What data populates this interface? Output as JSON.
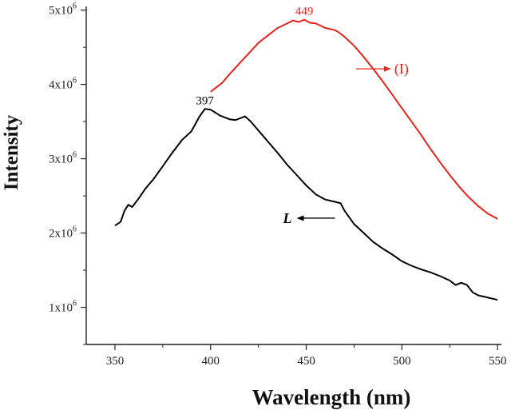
{
  "chart_data": {
    "type": "line",
    "xlabel": "Wavelength (nm)",
    "ylabel": "Intensity",
    "xlim": [
      335,
      552
    ],
    "ylim": [
      500000,
      5050000
    ],
    "x_ticks": [
      350,
      400,
      450,
      500,
      550
    ],
    "x_tick_labels": [
      "350",
      "400",
      "450",
      "500",
      "550"
    ],
    "y_ticks": [
      1000000,
      2000000,
      3000000,
      4000000,
      5000000
    ],
    "y_tick_labels": [
      {
        "base": "1x10",
        "exp": "6"
      },
      {
        "base": "2x10",
        "exp": "6"
      },
      {
        "base": "3x10",
        "exp": "6"
      },
      {
        "base": "4x10",
        "exp": "6"
      },
      {
        "base": "5x10",
        "exp": "6"
      }
    ],
    "grid": false,
    "colors": {
      "axis": "#222222",
      "series_L": "#000000",
      "series_I": "#e8231c"
    },
    "series": [
      {
        "name": "L",
        "color": "#000000",
        "peak_label": "397",
        "peak": [
          397,
          3670000
        ],
        "points": [
          [
            350,
            2100000
          ],
          [
            353,
            2150000
          ],
          [
            355,
            2300000
          ],
          [
            357,
            2380000
          ],
          [
            359,
            2350000
          ],
          [
            362,
            2450000
          ],
          [
            366,
            2600000
          ],
          [
            370,
            2720000
          ],
          [
            375,
            2900000
          ],
          [
            380,
            3080000
          ],
          [
            385,
            3250000
          ],
          [
            390,
            3370000
          ],
          [
            394,
            3560000
          ],
          [
            397,
            3670000
          ],
          [
            400,
            3660000
          ],
          [
            405,
            3580000
          ],
          [
            410,
            3530000
          ],
          [
            413,
            3520000
          ],
          [
            416,
            3550000
          ],
          [
            418,
            3570000
          ],
          [
            421,
            3500000
          ],
          [
            425,
            3380000
          ],
          [
            430,
            3230000
          ],
          [
            435,
            3080000
          ],
          [
            440,
            2920000
          ],
          [
            445,
            2780000
          ],
          [
            450,
            2640000
          ],
          [
            455,
            2520000
          ],
          [
            460,
            2450000
          ],
          [
            465,
            2420000
          ],
          [
            468,
            2400000
          ],
          [
            470,
            2300000
          ],
          [
            475,
            2120000
          ],
          [
            480,
            2000000
          ],
          [
            485,
            1880000
          ],
          [
            490,
            1790000
          ],
          [
            495,
            1710000
          ],
          [
            500,
            1620000
          ],
          [
            505,
            1560000
          ],
          [
            510,
            1510000
          ],
          [
            515,
            1470000
          ],
          [
            520,
            1420000
          ],
          [
            525,
            1360000
          ],
          [
            528,
            1300000
          ],
          [
            531,
            1330000
          ],
          [
            534,
            1300000
          ],
          [
            537,
            1200000
          ],
          [
            540,
            1160000
          ],
          [
            545,
            1130000
          ],
          [
            550,
            1100000
          ]
        ]
      },
      {
        "name": "(I)",
        "color": "#e8231c",
        "peak_label": "449",
        "peak": [
          449,
          4870000
        ],
        "points": [
          [
            400,
            3900000
          ],
          [
            403,
            3960000
          ],
          [
            406,
            4020000
          ],
          [
            410,
            4140000
          ],
          [
            415,
            4280000
          ],
          [
            420,
            4420000
          ],
          [
            425,
            4560000
          ],
          [
            430,
            4660000
          ],
          [
            435,
            4760000
          ],
          [
            440,
            4820000
          ],
          [
            443,
            4860000
          ],
          [
            446,
            4840000
          ],
          [
            449,
            4870000
          ],
          [
            452,
            4830000
          ],
          [
            455,
            4820000
          ],
          [
            460,
            4760000
          ],
          [
            465,
            4730000
          ],
          [
            467,
            4700000
          ],
          [
            470,
            4640000
          ],
          [
            475,
            4520000
          ],
          [
            480,
            4370000
          ],
          [
            485,
            4210000
          ],
          [
            490,
            4040000
          ],
          [
            495,
            3860000
          ],
          [
            500,
            3680000
          ],
          [
            505,
            3500000
          ],
          [
            510,
            3320000
          ],
          [
            515,
            3130000
          ],
          [
            520,
            2950000
          ],
          [
            525,
            2780000
          ],
          [
            530,
            2620000
          ],
          [
            535,
            2480000
          ],
          [
            540,
            2360000
          ],
          [
            545,
            2260000
          ],
          [
            550,
            2190000
          ]
        ]
      }
    ],
    "annotations": [
      {
        "series": "L",
        "text": "L",
        "direction": "left",
        "at": [
          465,
          2200000
        ]
      },
      {
        "series": "(I)",
        "text": "(I)",
        "direction": "right",
        "at": [
          476,
          4210000
        ]
      }
    ]
  }
}
